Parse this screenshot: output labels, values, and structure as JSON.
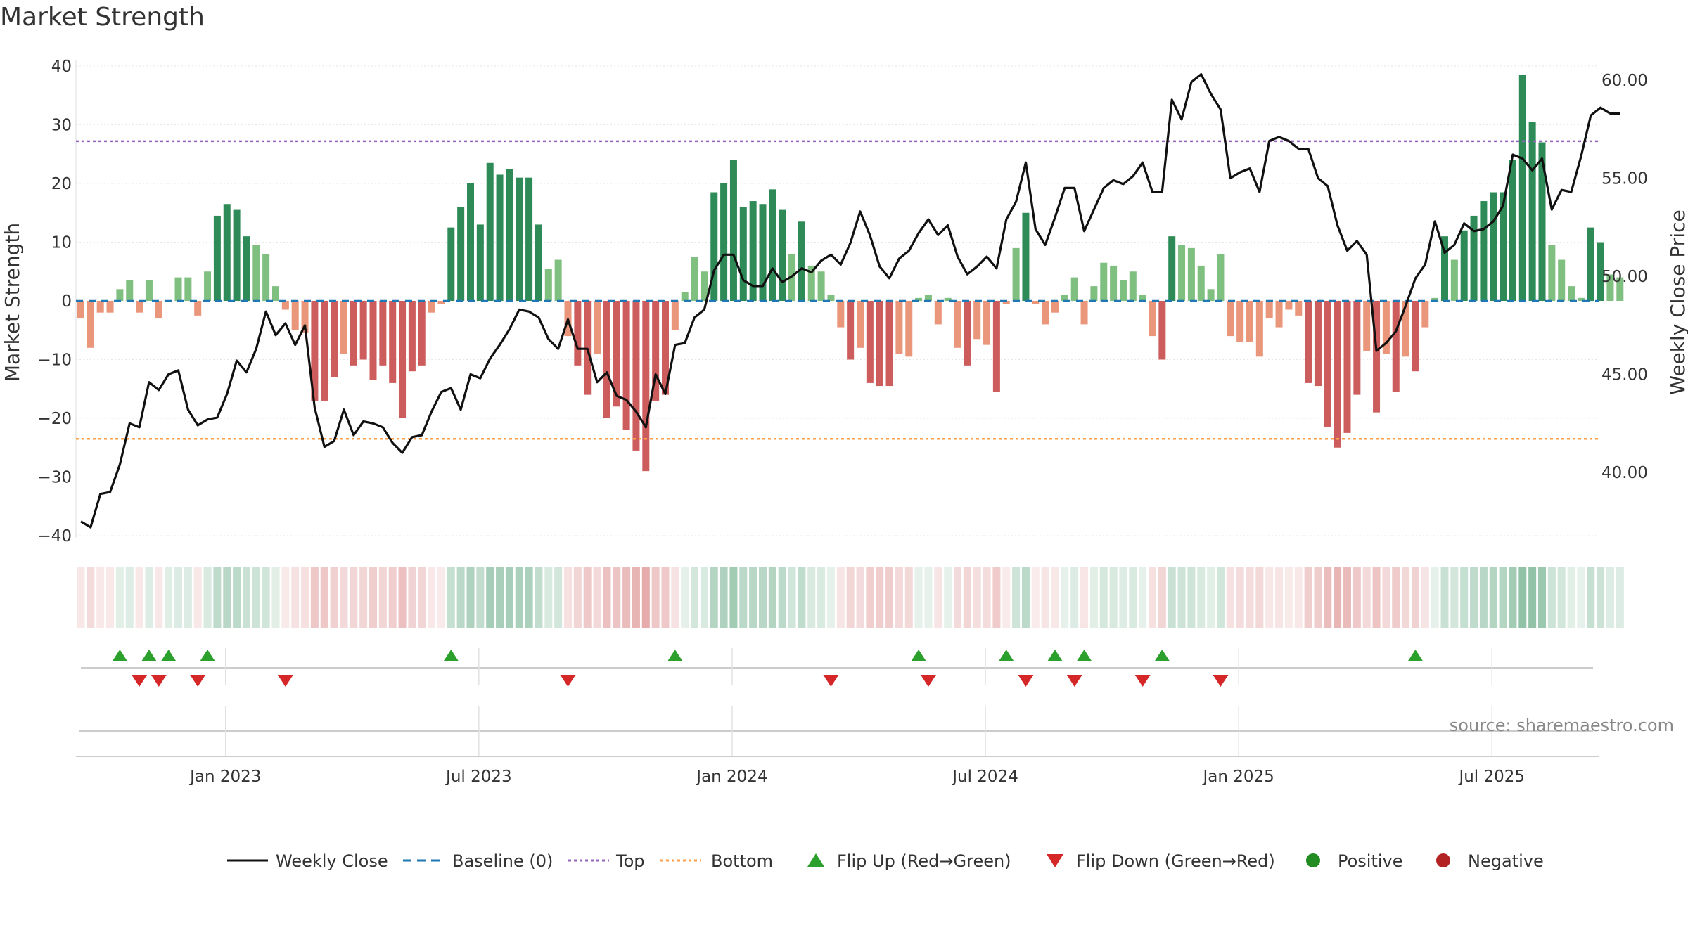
{
  "title": "Market Strength",
  "source": "source: sharemaestro.com",
  "colors": {
    "pos_dark": "#2e8b57",
    "pos_light": "#7fbf7f",
    "neg_dark": "#cd5c5c",
    "neg_light": "#e9967a",
    "line": "#111111",
    "baseline": "#1f77b4",
    "top": "#9467bd",
    "bottom": "#ff9f4a",
    "flip_up": "#2ca02c",
    "flip_down": "#d62728",
    "positive": "#228b22",
    "negative": "#b22222"
  },
  "chart_data": {
    "type": "bar+line",
    "title": "Market Strength",
    "x_tick_labels": [
      "Jan 2023",
      "Jul 2023",
      "Jan 2024",
      "Jul 2024",
      "Jan 2025",
      "Jul 2025"
    ],
    "x_tick_week_index": [
      15,
      41,
      67,
      93,
      119,
      145
    ],
    "left_axis": {
      "label": "Market Strength",
      "ticks": [
        40,
        30,
        20,
        10,
        0,
        -10,
        -20,
        -30,
        -40
      ],
      "tick_labels": [
        "40",
        "30",
        "20",
        "10",
        "0",
        "−10",
        "−20",
        "−30",
        "−40"
      ],
      "range": [
        -42,
        42
      ]
    },
    "right_axis": {
      "label": "Weekly Close Price",
      "ticks": [
        60,
        55,
        50,
        45,
        40
      ],
      "tick_labels": [
        "60.00",
        "55.00",
        "50.00",
        "45.00",
        "40.00"
      ],
      "range": [
        36.3,
        62.4
      ]
    },
    "top_level": 27.2,
    "bottom_level": -23.5,
    "strength": [
      -3,
      -8,
      -2,
      -2,
      2,
      3.5,
      -2,
      3.5,
      -3,
      0,
      4,
      4,
      -2.5,
      5,
      14.5,
      16.5,
      15.5,
      11,
      9.5,
      8,
      2.5,
      -1.5,
      -5,
      -5.5,
      -17,
      -17,
      -13,
      -9,
      -11,
      -10,
      -13.5,
      -11,
      -14,
      -20,
      -12,
      -11,
      -2,
      -0.5,
      12.5,
      16,
      20,
      13,
      23.5,
      21.5,
      22.5,
      21,
      21,
      13,
      5.5,
      7,
      -6,
      -11,
      -16,
      -9,
      -20,
      -18,
      -22,
      -25.5,
      -29,
      -17,
      -16,
      -5,
      1.5,
      7.5,
      5,
      18.5,
      20,
      24,
      16,
      17,
      16.5,
      19,
      15.5,
      8,
      13.5,
      6,
      5,
      1,
      -4.5,
      -10,
      -8,
      -14,
      -14.5,
      -14.5,
      -9,
      -9.5,
      0.5,
      1,
      -4,
      0.5,
      -8,
      -11,
      -6.5,
      -7.5,
      -15.5,
      -0.5,
      9,
      15,
      -0.5,
      -4,
      -2,
      1,
      4,
      -4,
      2.5,
      6.5,
      6,
      3.5,
      5,
      1,
      -6,
      -10,
      11,
      9.5,
      9,
      6,
      2,
      8,
      -6,
      -7,
      -7,
      -9.5,
      -3,
      -4.5,
      -1.5,
      -2.5,
      -14,
      -14.5,
      -21.5,
      -25,
      -22.5,
      -16,
      -8.5,
      -19,
      -9,
      -15.5,
      -9.5,
      -12,
      -4.5,
      0.5,
      11,
      7,
      12,
      14.5,
      17,
      18.5,
      18.5,
      24,
      38.5,
      30.5,
      27,
      9.5,
      7,
      2.5,
      0.5,
      12.5,
      10,
      4.5,
      4
    ],
    "weekly_close": [
      37.5,
      37.2,
      38.9,
      39.0,
      40.4,
      42.5,
      42.3,
      44.6,
      44.2,
      45.0,
      45.2,
      43.2,
      42.4,
      42.7,
      42.8,
      44.0,
      45.7,
      45.1,
      46.3,
      48.2,
      47.0,
      47.6,
      46.5,
      47.5,
      43.3,
      41.3,
      41.6,
      43.2,
      41.9,
      42.6,
      42.5,
      42.3,
      41.5,
      41.0,
      41.8,
      41.9,
      43.1,
      44.1,
      44.3,
      43.2,
      45.0,
      44.8,
      45.8,
      46.5,
      47.3,
      48.3,
      48.2,
      47.9,
      46.8,
      46.3,
      47.8,
      46.3,
      46.3,
      44.6,
      45.1,
      43.9,
      43.7,
      43.1,
      42.3,
      45.0,
      44.0,
      46.5,
      46.6,
      47.9,
      48.3,
      50.3,
      51.1,
      51.1,
      49.8,
      49.5,
      49.5,
      50.4,
      49.7,
      50.0,
      50.4,
      50.2,
      50.8,
      51.1,
      50.6,
      51.7,
      53.3,
      52.1,
      50.5,
      49.9,
      50.9,
      51.3,
      52.2,
      52.9,
      52.1,
      52.6,
      51.0,
      50.1,
      50.5,
      51.0,
      50.4,
      52.9,
      53.8,
      55.8,
      52.4,
      51.6,
      53.0,
      54.5,
      54.5,
      52.3,
      53.4,
      54.5,
      54.9,
      54.7,
      55.1,
      55.8,
      54.3,
      54.3,
      59.0,
      58.0,
      59.9,
      60.3,
      59.3,
      58.5,
      55.0,
      55.3,
      55.5,
      54.3,
      56.9,
      57.1,
      56.9,
      56.5,
      56.5,
      55.0,
      54.6,
      52.6,
      51.3,
      51.8,
      51.1,
      46.2,
      46.6,
      47.2,
      48.5,
      49.9,
      50.6,
      52.8,
      51.2,
      51.6,
      52.7,
      52.3,
      52.4,
      52.8,
      53.6,
      56.2,
      56.0,
      55.4,
      56.0,
      53.4,
      54.4,
      54.3,
      56.1,
      58.2,
      58.6,
      58.3,
      58.3
    ],
    "shade_column_labels": [],
    "flip_up_weeks": [
      4,
      7,
      9,
      13,
      38,
      61,
      86,
      95,
      100,
      103,
      111,
      137
    ],
    "flip_down_weeks": [
      6,
      8,
      12,
      21,
      50,
      77,
      87,
      97,
      102,
      109,
      117
    ],
    "legend": [
      "Weekly Close",
      "Baseline (0)",
      "Top",
      "Bottom",
      "Flip Up (Red→Green)",
      "Flip Down (Green→Red)",
      "Positive",
      "Negative"
    ]
  }
}
